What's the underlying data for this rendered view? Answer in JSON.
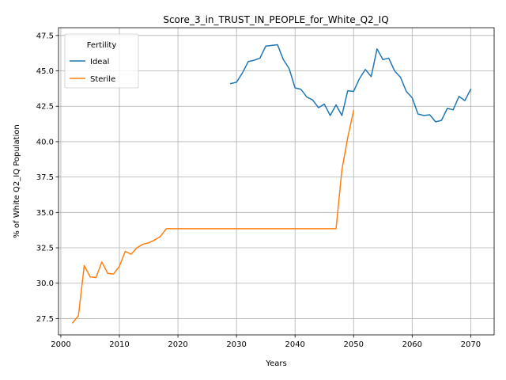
{
  "chart_data": {
    "type": "line",
    "title": "Score_3_in_TRUST_IN_PEOPLE_for_White_Q2_IQ",
    "xlabel": "Years",
    "ylabel": "% of White Q2_IQ Population",
    "xlim": [
      1999.6,
      2074.0
    ],
    "ylim": [
      26.35,
      48.05
    ],
    "xticks": [
      2000,
      2010,
      2020,
      2030,
      2040,
      2050,
      2060,
      2070
    ],
    "yticks": [
      27.5,
      30.0,
      32.5,
      35.0,
      37.5,
      40.0,
      42.5,
      45.0,
      47.5
    ],
    "xtick_labels": [
      "2000",
      "2010",
      "2020",
      "2030",
      "2040",
      "2050",
      "2060",
      "2070"
    ],
    "ytick_labels": [
      "27.5",
      "30.0",
      "32.5",
      "35.0",
      "37.5",
      "40.0",
      "42.5",
      "45.0",
      "47.5"
    ],
    "grid": true,
    "legend": {
      "title": "Fertility",
      "placement": "top-left"
    },
    "series": [
      {
        "name": "Ideal",
        "color": "#1f77b4",
        "x": [
          2029,
          2030,
          2031,
          2032,
          2033,
          2034,
          2035,
          2036,
          2037,
          2038,
          2039,
          2040,
          2041,
          2042,
          2043,
          2044,
          2045,
          2046,
          2047,
          2048,
          2049,
          2050,
          2051,
          2052,
          2053,
          2054,
          2055,
          2056,
          2057,
          2058,
          2059,
          2060,
          2061,
          2062,
          2063,
          2064,
          2065,
          2066,
          2067,
          2068,
          2069,
          2070
        ],
        "y": [
          44.1,
          44.2,
          44.85,
          45.65,
          45.75,
          45.9,
          46.75,
          46.8,
          46.85,
          45.8,
          45.15,
          43.8,
          43.7,
          43.15,
          42.95,
          42.4,
          42.65,
          41.85,
          42.6,
          41.85,
          43.6,
          43.55,
          44.45,
          45.1,
          44.6,
          46.55,
          45.8,
          45.9,
          45.0,
          44.55,
          43.55,
          43.1,
          41.95,
          41.85,
          41.9,
          41.4,
          41.5,
          42.35,
          42.25,
          43.2,
          42.9,
          43.7
        ]
      },
      {
        "name": "Sterile",
        "color": "#ff7f0e",
        "x": [
          2002,
          2003,
          2004,
          2005,
          2006,
          2007,
          2008,
          2009,
          2010,
          2011,
          2012,
          2013,
          2014,
          2015,
          2016,
          2017,
          2018,
          2019,
          2020,
          2021,
          2022,
          2023,
          2024,
          2025,
          2026,
          2027,
          2028,
          2029,
          2030,
          2031,
          2032,
          2033,
          2034,
          2035,
          2036,
          2037,
          2038,
          2039,
          2040,
          2041,
          2042,
          2043,
          2044,
          2045,
          2046,
          2047,
          2048,
          2049,
          2050
        ],
        "y": [
          27.2,
          27.7,
          31.25,
          30.45,
          30.4,
          31.5,
          30.7,
          30.65,
          31.2,
          32.25,
          32.05,
          32.5,
          32.75,
          32.85,
          33.05,
          33.3,
          33.85,
          33.85,
          33.85,
          33.85,
          33.85,
          33.85,
          33.85,
          33.85,
          33.85,
          33.85,
          33.85,
          33.85,
          33.85,
          33.85,
          33.85,
          33.85,
          33.85,
          33.85,
          33.85,
          33.85,
          33.85,
          33.85,
          33.85,
          33.85,
          33.85,
          33.85,
          33.85,
          33.85,
          33.85,
          33.85,
          38.0,
          40.3,
          42.2
        ]
      }
    ]
  }
}
